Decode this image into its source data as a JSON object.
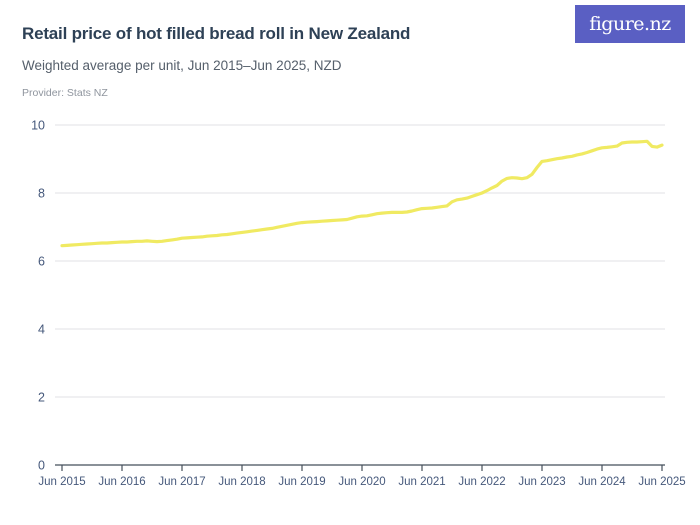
{
  "header": {
    "title": "Retail price of hot filled bread roll in New Zealand",
    "subtitle": "Weighted average per unit, Jun 2015–Jun 2025, NZD",
    "provider": "Provider: Stats NZ",
    "logo_text": "figure.nz"
  },
  "colors": {
    "background": "#ffffff",
    "title": "#2e4156",
    "subtitle": "#555f6b",
    "provider": "#8f959e",
    "axis_label": "#45587b",
    "gridline": "#e7e7ea",
    "axis_line": "#454f5b",
    "line": "#f0ea62",
    "logo_bg": "#5a5fc3",
    "logo_text": "#ffffff"
  },
  "chart_data": {
    "type": "line",
    "title": "Retail price of hot filled bread roll in New Zealand",
    "subtitle": "Weighted average per unit, Jun 2015–Jun 2025, NZD",
    "xlabel": "",
    "ylabel": "",
    "unit": "NZD",
    "x_tick_labels": [
      "Jun 2015",
      "Jun 2016",
      "Jun 2017",
      "Jun 2018",
      "Jun 2019",
      "Jun 2020",
      "Jun 2021",
      "Jun 2022",
      "Jun 2023",
      "Jun 2024",
      "Jun 2025"
    ],
    "y_ticks": [
      0,
      2,
      4,
      6,
      8,
      10
    ],
    "ylim": [
      0,
      10
    ],
    "grid": "horizontal",
    "legend": "none",
    "series": [
      {
        "name": "Weighted average retail price per unit (NZD)",
        "frequency": "monthly",
        "x_start": "Jun 2015",
        "x_end": "Jun 2025",
        "values": [
          6.45,
          6.46,
          6.47,
          6.48,
          6.49,
          6.5,
          6.51,
          6.52,
          6.53,
          6.53,
          6.54,
          6.55,
          6.56,
          6.56,
          6.57,
          6.58,
          6.58,
          6.59,
          6.58,
          6.57,
          6.58,
          6.6,
          6.62,
          6.64,
          6.67,
          6.68,
          6.69,
          6.7,
          6.71,
          6.73,
          6.74,
          6.75,
          6.77,
          6.78,
          6.8,
          6.82,
          6.84,
          6.86,
          6.88,
          6.9,
          6.92,
          6.94,
          6.96,
          6.99,
          7.02,
          7.05,
          7.08,
          7.11,
          7.13,
          7.14,
          7.15,
          7.16,
          7.17,
          7.18,
          7.19,
          7.2,
          7.21,
          7.22,
          7.26,
          7.3,
          7.32,
          7.33,
          7.36,
          7.39,
          7.41,
          7.42,
          7.43,
          7.43,
          7.43,
          7.44,
          7.47,
          7.51,
          7.54,
          7.55,
          7.56,
          7.58,
          7.6,
          7.62,
          7.74,
          7.8,
          7.82,
          7.85,
          7.9,
          7.95,
          8.0,
          8.07,
          8.15,
          8.22,
          8.35,
          8.43,
          8.45,
          8.44,
          8.42,
          8.45,
          8.55,
          8.75,
          8.93,
          8.95,
          8.98,
          9.01,
          9.03,
          9.06,
          9.08,
          9.12,
          9.15,
          9.19,
          9.24,
          9.29,
          9.33,
          9.34,
          9.36,
          9.38,
          9.47,
          9.49,
          9.5,
          9.5,
          9.51,
          9.52,
          9.37,
          9.35,
          9.41
        ]
      }
    ]
  }
}
